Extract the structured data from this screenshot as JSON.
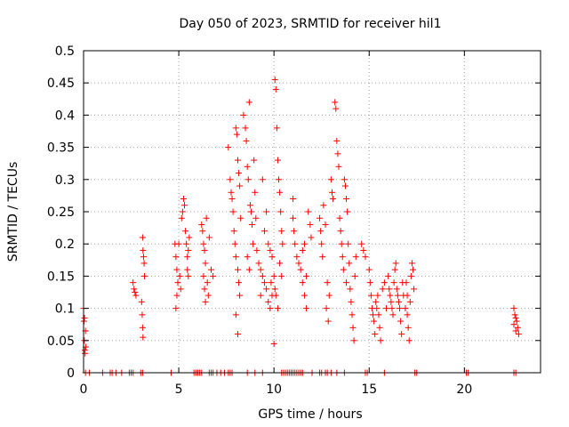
{
  "chart_data": {
    "type": "scatter",
    "title": "Day 050 of 2023, SRMTID for receiver hil1",
    "xlabel": "GPS time / hours",
    "ylabel": "SRMTID / TECUs",
    "xlim": [
      0,
      24
    ],
    "ylim": [
      0,
      0.5
    ],
    "xticks": [
      0,
      5,
      10,
      15,
      20
    ],
    "xtick_labels": [
      "0",
      "5",
      "10",
      "15",
      "20"
    ],
    "yticks": [
      0,
      0.05,
      0.1,
      0.15,
      0.2,
      0.25,
      0.3,
      0.35,
      0.4,
      0.45,
      0.5
    ],
    "ytick_labels": [
      "0",
      "0.05",
      "0.1",
      "0.15",
      "0.2",
      "0.25",
      "0.3",
      "0.35",
      "0.4",
      "0.45",
      "0.5"
    ],
    "grid": true,
    "marker": "+",
    "color": "#ff0000",
    "series": [
      {
        "values": [
          [
            0.0,
            0.1
          ],
          [
            0.02,
            0.08
          ],
          [
            0.04,
            0.05
          ],
          [
            0.06,
            0.035
          ],
          [
            0.08,
            0.03
          ],
          [
            0.1,
            0.065
          ],
          [
            0.05,
            0.085
          ],
          [
            0.12,
            0.04
          ],
          [
            2.6,
            0.14
          ],
          [
            2.65,
            0.13
          ],
          [
            2.7,
            0.125
          ],
          [
            2.75,
            0.12
          ],
          [
            3.1,
            0.21
          ],
          [
            3.12,
            0.19
          ],
          [
            3.15,
            0.18
          ],
          [
            3.18,
            0.17
          ],
          [
            3.2,
            0.15
          ],
          [
            3.05,
            0.11
          ],
          [
            3.08,
            0.09
          ],
          [
            3.1,
            0.07
          ],
          [
            3.12,
            0.055
          ],
          [
            4.8,
            0.2
          ],
          [
            4.85,
            0.18
          ],
          [
            4.9,
            0.16
          ],
          [
            4.95,
            0.14
          ],
          [
            4.9,
            0.12
          ],
          [
            4.85,
            0.1
          ],
          [
            5.0,
            0.2
          ],
          [
            5.05,
            0.15
          ],
          [
            5.1,
            0.13
          ],
          [
            5.15,
            0.24
          ],
          [
            5.2,
            0.25
          ],
          [
            5.25,
            0.27
          ],
          [
            5.3,
            0.26
          ],
          [
            5.35,
            0.22
          ],
          [
            5.4,
            0.2
          ],
          [
            5.45,
            0.18
          ],
          [
            5.5,
            0.19
          ],
          [
            5.55,
            0.21
          ],
          [
            5.5,
            0.15
          ],
          [
            5.45,
            0.16
          ],
          [
            6.2,
            0.23
          ],
          [
            6.25,
            0.22
          ],
          [
            6.3,
            0.2
          ],
          [
            6.35,
            0.19
          ],
          [
            6.4,
            0.17
          ],
          [
            6.3,
            0.15
          ],
          [
            6.35,
            0.13
          ],
          [
            6.4,
            0.11
          ],
          [
            6.5,
            0.14
          ],
          [
            6.55,
            0.12
          ],
          [
            6.6,
            0.21
          ],
          [
            6.45,
            0.24
          ],
          [
            6.7,
            0.16
          ],
          [
            6.8,
            0.15
          ],
          [
            7.6,
            0.35
          ],
          [
            7.7,
            0.3
          ],
          [
            7.75,
            0.28
          ],
          [
            7.8,
            0.27
          ],
          [
            7.85,
            0.25
          ],
          [
            7.9,
            0.22
          ],
          [
            7.95,
            0.2
          ],
          [
            8.0,
            0.18
          ],
          [
            8.0,
            0.38
          ],
          [
            8.05,
            0.37
          ],
          [
            8.1,
            0.33
          ],
          [
            8.15,
            0.31
          ],
          [
            8.2,
            0.29
          ],
          [
            8.25,
            0.24
          ],
          [
            8.1,
            0.16
          ],
          [
            8.15,
            0.14
          ],
          [
            8.2,
            0.12
          ],
          [
            8.0,
            0.09
          ],
          [
            8.1,
            0.06
          ],
          [
            8.4,
            0.4
          ],
          [
            8.5,
            0.38
          ],
          [
            8.55,
            0.36
          ],
          [
            8.6,
            0.32
          ],
          [
            8.65,
            0.3
          ],
          [
            8.7,
            0.42
          ],
          [
            8.75,
            0.26
          ],
          [
            8.8,
            0.25
          ],
          [
            8.85,
            0.23
          ],
          [
            8.9,
            0.2
          ],
          [
            8.95,
            0.33
          ],
          [
            9.0,
            0.28
          ],
          [
            9.05,
            0.24
          ],
          [
            9.1,
            0.19
          ],
          [
            8.6,
            0.18
          ],
          [
            8.7,
            0.16
          ],
          [
            9.2,
            0.17
          ],
          [
            9.3,
            0.16
          ],
          [
            9.4,
            0.15
          ],
          [
            9.5,
            0.14
          ],
          [
            9.6,
            0.13
          ],
          [
            9.7,
            0.2
          ],
          [
            9.8,
            0.19
          ],
          [
            9.9,
            0.18
          ],
          [
            9.5,
            0.22
          ],
          [
            9.6,
            0.25
          ],
          [
            9.4,
            0.3
          ],
          [
            9.3,
            0.12
          ],
          [
            9.7,
            0.11
          ],
          [
            9.8,
            0.1
          ],
          [
            9.9,
            0.12
          ],
          [
            9.85,
            0.14
          ],
          [
            10.0,
            0.15
          ],
          [
            10.05,
            0.13
          ],
          [
            10.1,
            0.12
          ],
          [
            10.0,
            0.045
          ],
          [
            10.15,
            0.38
          ],
          [
            10.1,
            0.44
          ],
          [
            10.05,
            0.455
          ],
          [
            10.2,
            0.33
          ],
          [
            10.25,
            0.3
          ],
          [
            10.3,
            0.28
          ],
          [
            10.35,
            0.25
          ],
          [
            10.4,
            0.22
          ],
          [
            10.45,
            0.2
          ],
          [
            10.3,
            0.17
          ],
          [
            10.4,
            0.15
          ],
          [
            10.2,
            0.1
          ],
          [
            11.0,
            0.24
          ],
          [
            11.05,
            0.22
          ],
          [
            11.1,
            0.2
          ],
          [
            11.0,
            0.27
          ],
          [
            11.2,
            0.18
          ],
          [
            11.3,
            0.17
          ],
          [
            11.4,
            0.16
          ],
          [
            11.5,
            0.14
          ],
          [
            11.6,
            0.12
          ],
          [
            11.7,
            0.1
          ],
          [
            11.8,
            0.25
          ],
          [
            11.9,
            0.23
          ],
          [
            11.6,
            0.2
          ],
          [
            11.5,
            0.19
          ],
          [
            11.7,
            0.15
          ],
          [
            11.95,
            0.21
          ],
          [
            12.4,
            0.24
          ],
          [
            12.45,
            0.22
          ],
          [
            12.5,
            0.2
          ],
          [
            12.55,
            0.18
          ],
          [
            12.6,
            0.26
          ],
          [
            12.7,
            0.23
          ],
          [
            12.8,
            0.14
          ],
          [
            12.9,
            0.12
          ],
          [
            12.75,
            0.1
          ],
          [
            12.85,
            0.08
          ],
          [
            13.0,
            0.3
          ],
          [
            13.05,
            0.28
          ],
          [
            13.1,
            0.27
          ],
          [
            13.2,
            0.42
          ],
          [
            13.25,
            0.41
          ],
          [
            13.3,
            0.36
          ],
          [
            13.35,
            0.34
          ],
          [
            13.4,
            0.32
          ],
          [
            13.45,
            0.24
          ],
          [
            13.5,
            0.22
          ],
          [
            13.55,
            0.2
          ],
          [
            13.6,
            0.18
          ],
          [
            13.65,
            0.16
          ],
          [
            13.7,
            0.3
          ],
          [
            13.75,
            0.29
          ],
          [
            13.8,
            0.27
          ],
          [
            13.85,
            0.25
          ],
          [
            13.9,
            0.2
          ],
          [
            13.95,
            0.17
          ],
          [
            13.8,
            0.14
          ],
          [
            14.0,
            0.13
          ],
          [
            14.05,
            0.11
          ],
          [
            14.1,
            0.09
          ],
          [
            14.15,
            0.07
          ],
          [
            14.2,
            0.05
          ],
          [
            14.25,
            0.15
          ],
          [
            14.3,
            0.18
          ],
          [
            14.6,
            0.2
          ],
          [
            14.7,
            0.19
          ],
          [
            14.8,
            0.18
          ],
          [
            15.0,
            0.16
          ],
          [
            15.05,
            0.14
          ],
          [
            15.1,
            0.12
          ],
          [
            15.15,
            0.1
          ],
          [
            15.2,
            0.09
          ],
          [
            15.25,
            0.08
          ],
          [
            15.3,
            0.06
          ],
          [
            15.35,
            0.11
          ],
          [
            15.4,
            0.1
          ],
          [
            15.45,
            0.12
          ],
          [
            15.5,
            0.09
          ],
          [
            15.55,
            0.07
          ],
          [
            15.6,
            0.05
          ],
          [
            15.7,
            0.13
          ],
          [
            15.8,
            0.14
          ],
          [
            15.9,
            0.1
          ],
          [
            16.0,
            0.15
          ],
          [
            16.05,
            0.13
          ],
          [
            16.1,
            0.12
          ],
          [
            16.15,
            0.11
          ],
          [
            16.2,
            0.1
          ],
          [
            16.25,
            0.09
          ],
          [
            16.3,
            0.14
          ],
          [
            16.35,
            0.16
          ],
          [
            16.4,
            0.17
          ],
          [
            16.45,
            0.13
          ],
          [
            16.5,
            0.12
          ],
          [
            16.55,
            0.11
          ],
          [
            16.6,
            0.1
          ],
          [
            16.65,
            0.08
          ],
          [
            16.7,
            0.06
          ],
          [
            16.75,
            0.14
          ],
          [
            16.8,
            0.12
          ],
          [
            16.9,
            0.1
          ],
          [
            17.0,
            0.09
          ],
          [
            17.05,
            0.07
          ],
          [
            17.1,
            0.05
          ],
          [
            17.15,
            0.11
          ],
          [
            17.2,
            0.15
          ],
          [
            17.25,
            0.17
          ],
          [
            17.3,
            0.16
          ],
          [
            17.35,
            0.13
          ],
          [
            17.0,
            0.12
          ],
          [
            16.95,
            0.14
          ],
          [
            22.6,
            0.1
          ],
          [
            22.65,
            0.09
          ],
          [
            22.7,
            0.085
          ],
          [
            22.75,
            0.08
          ],
          [
            22.8,
            0.07
          ],
          [
            22.85,
            0.06
          ],
          [
            22.7,
            0.065
          ],
          [
            22.6,
            0.075
          ]
        ]
      },
      {
        "values": [
          [
            0.1,
            0
          ],
          [
            0.3,
            0
          ],
          [
            1.0,
            0
          ],
          [
            1.4,
            0
          ],
          [
            1.5,
            0
          ],
          [
            1.7,
            0
          ],
          [
            2.0,
            0
          ],
          [
            2.4,
            0
          ],
          [
            2.5,
            0
          ],
          [
            2.6,
            0
          ],
          [
            3.0,
            0
          ],
          [
            3.1,
            0
          ],
          [
            4.6,
            0
          ],
          [
            5.8,
            0
          ],
          [
            5.9,
            0
          ],
          [
            6.0,
            0
          ],
          [
            6.1,
            0
          ],
          [
            6.2,
            0
          ],
          [
            6.6,
            0
          ],
          [
            6.7,
            0
          ],
          [
            6.8,
            0
          ],
          [
            7.0,
            0
          ],
          [
            7.2,
            0
          ],
          [
            7.4,
            0
          ],
          [
            7.6,
            0
          ],
          [
            7.7,
            0
          ],
          [
            7.8,
            0
          ],
          [
            8.6,
            0
          ],
          [
            9.0,
            0
          ],
          [
            9.4,
            0
          ],
          [
            10.4,
            0
          ],
          [
            10.5,
            0
          ],
          [
            10.6,
            0
          ],
          [
            10.7,
            0
          ],
          [
            10.8,
            0
          ],
          [
            10.9,
            0
          ],
          [
            11.0,
            0
          ],
          [
            11.1,
            0
          ],
          [
            11.2,
            0
          ],
          [
            11.3,
            0
          ],
          [
            11.4,
            0
          ],
          [
            11.5,
            0
          ],
          [
            12.0,
            0
          ],
          [
            12.4,
            0
          ],
          [
            12.5,
            0
          ],
          [
            12.7,
            0
          ],
          [
            12.8,
            0
          ],
          [
            13.0,
            0
          ],
          [
            13.3,
            0
          ],
          [
            13.7,
            0
          ],
          [
            14.8,
            0
          ],
          [
            14.9,
            0
          ],
          [
            15.8,
            0
          ],
          [
            17.4,
            0
          ],
          [
            17.5,
            0
          ],
          [
            20.1,
            0
          ],
          [
            20.2,
            0
          ],
          [
            22.6,
            0
          ],
          [
            22.7,
            0
          ]
        ]
      }
    ]
  }
}
